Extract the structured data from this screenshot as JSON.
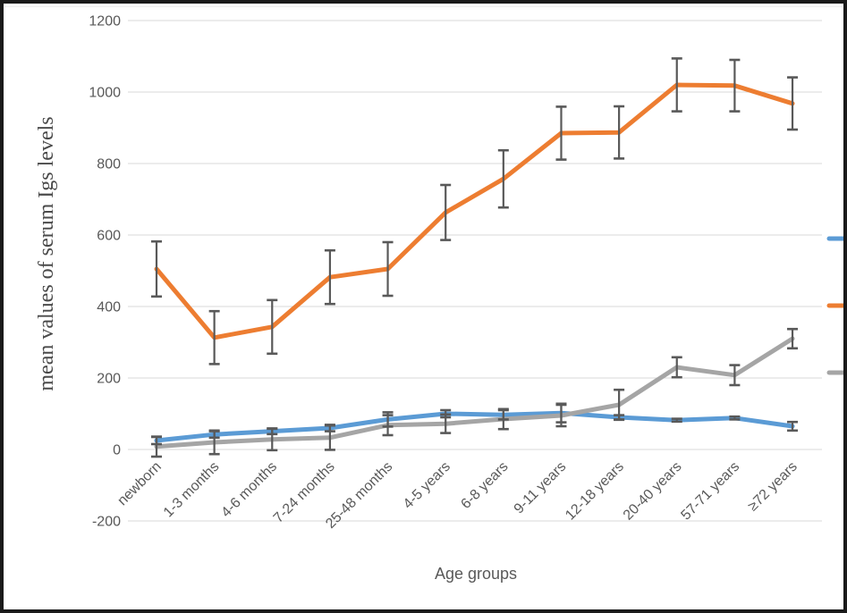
{
  "figure": {
    "background": "#ffffff",
    "border_color": "#1a1a1a"
  },
  "chart_data": {
    "type": "line",
    "title": "",
    "xlabel": "Age groups",
    "ylabel": "mean values of serum Igs levels",
    "ylim": [
      -200,
      1200
    ],
    "yticks": [
      1200,
      1000,
      800,
      600,
      400,
      200,
      0,
      -200
    ],
    "grid": "horizontal",
    "gridline_color": "#d9d9d9",
    "tick_label_color": "#595959",
    "error_bar_color": "#595959",
    "categories": [
      "newborn",
      "1-3 months",
      "4-6 months",
      "7-24 months",
      "25-48 months",
      "4-5 years",
      "6-8 years",
      "9-11 years",
      "12-18 years",
      "20-40 years",
      "57-71 years",
      "≥72 years"
    ],
    "series": [
      {
        "name": "blue",
        "color": "#5b9bd5",
        "values": [
          25,
          42,
          51,
          60,
          84,
          100,
          97,
          102,
          90,
          82,
          88,
          65
        ],
        "errors": [
          10,
          9,
          8,
          9,
          20,
          10,
          13,
          26,
          6,
          4,
          4,
          12
        ]
      },
      {
        "name": "orange",
        "color": "#ed7d31",
        "values": [
          505,
          313,
          343,
          482,
          505,
          663,
          757,
          885,
          887,
          1020,
          1018,
          968
        ],
        "errors": [
          77,
          74,
          75,
          75,
          75,
          77,
          80,
          74,
          73,
          74,
          72,
          73
        ]
      },
      {
        "name": "gray",
        "color": "#a5a5a5",
        "values": [
          8,
          20,
          28,
          33,
          68,
          72,
          85,
          95,
          125,
          230,
          208,
          310
        ],
        "errors": [
          28,
          33,
          30,
          34,
          28,
          26,
          28,
          30,
          42,
          28,
          28,
          27
        ]
      }
    ],
    "legend": {
      "position": "right",
      "truncated_by_image_edge": true,
      "marker_colors_top_to_bottom": [
        "#5b9bd5",
        "#ed7d31",
        "#a5a5a5"
      ]
    }
  }
}
